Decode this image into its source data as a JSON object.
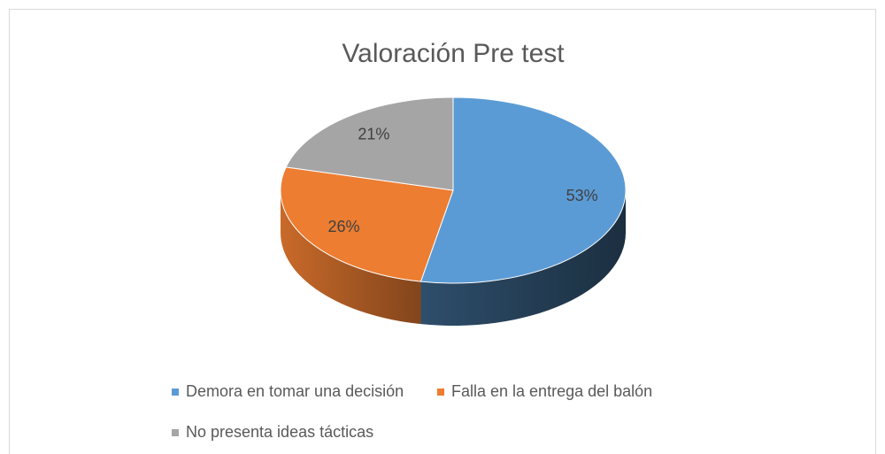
{
  "chart_data": {
    "type": "pie",
    "title": "Valoración Pre test",
    "categories": [
      "Demora en tomar una decisión",
      "Falla en la entrega del balón",
      "No presenta ideas tácticas"
    ],
    "values": [
      53,
      26,
      21
    ],
    "value_labels": [
      "53%",
      "26%",
      "21%"
    ],
    "colors": [
      "#5b9bd5",
      "#ed7d31",
      "#a5a5a5"
    ],
    "legend": "bottom"
  }
}
